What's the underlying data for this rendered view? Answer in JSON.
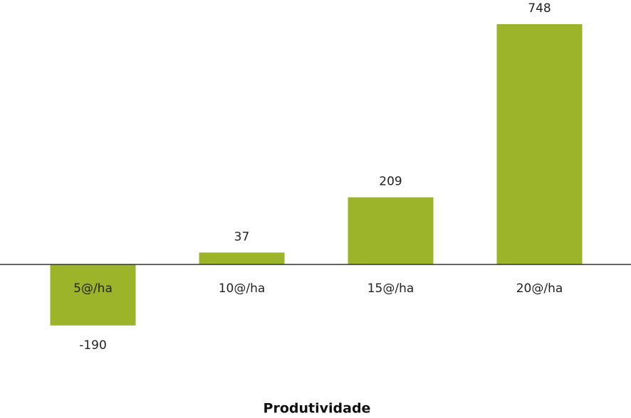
{
  "chart_data": {
    "type": "bar",
    "x_label": "Produtividade",
    "categories": [
      "5@/ha",
      "10@/ha",
      "15@/ha",
      "20@/ha"
    ],
    "values": [
      -190,
      37,
      209,
      748
    ],
    "color": "#9bb42a"
  }
}
